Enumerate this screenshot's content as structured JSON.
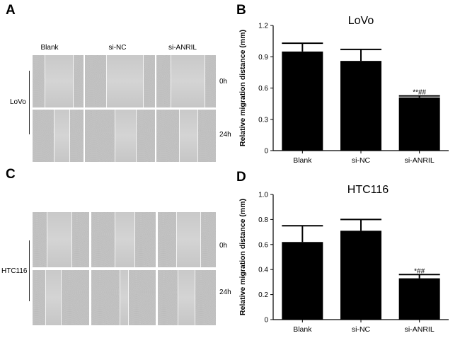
{
  "panels": {
    "A": "A",
    "B": "B",
    "C": "C",
    "D": "D"
  },
  "micrographs_top": {
    "columns": [
      "Blank",
      "si-NC",
      "si-ANRIL"
    ],
    "rows": [
      "0h",
      "24h"
    ],
    "cell_line": "LoVo"
  },
  "micrographs_bottom": {
    "rows": [
      "0h",
      "24h"
    ],
    "cell_line": "HTC116"
  },
  "chart_data": [
    {
      "type": "bar",
      "title": "LoVo",
      "categories": [
        "Blank",
        "si-NC",
        "si-ANRIL"
      ],
      "values": [
        0.95,
        0.86,
        0.51
      ],
      "errors": [
        0.08,
        0.11,
        0.015
      ],
      "annotations": [
        "",
        "",
        "**##"
      ],
      "ylabel": "Relative migration distance (mm)",
      "xlabel": "",
      "ylim": [
        0,
        1.2
      ],
      "yticks": [
        "0",
        "0.3",
        "0.6",
        "0.9",
        "1.2"
      ],
      "grid": false,
      "bar_color": "#000000"
    },
    {
      "type": "bar",
      "title": "HTC116",
      "categories": [
        "Blank",
        "si-NC",
        "si-ANRIL"
      ],
      "values": [
        0.62,
        0.71,
        0.33
      ],
      "errors": [
        0.13,
        0.09,
        0.03
      ],
      "annotations": [
        "",
        "",
        "*##"
      ],
      "ylabel": "Relative migration distance (mm)",
      "xlabel": "",
      "ylim": [
        0,
        1.0
      ],
      "yticks": [
        "0",
        "0.2",
        "0.4",
        "0.6",
        "0.8",
        "1.0"
      ],
      "grid": false,
      "bar_color": "#000000"
    }
  ]
}
